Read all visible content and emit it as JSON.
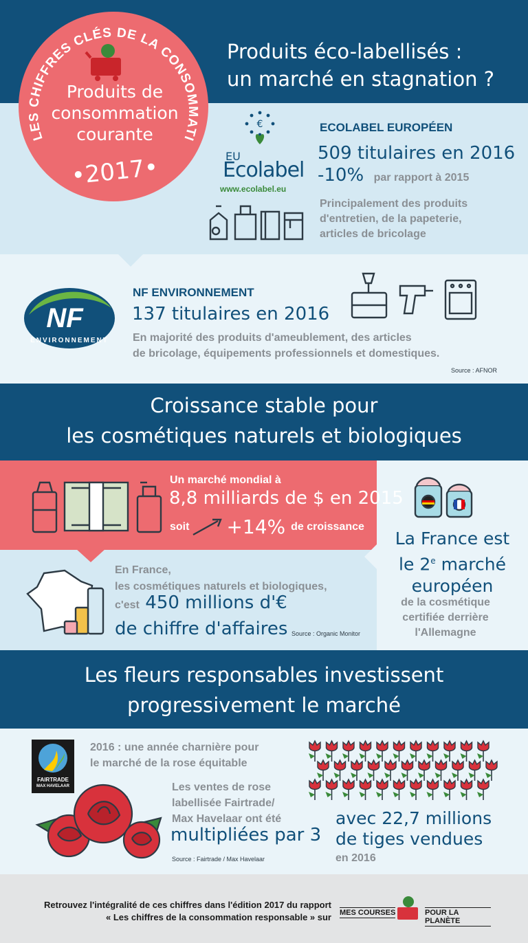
{
  "badge": {
    "ring_text": "LES CHIFFRES CLÉS DE LA CONSOMMATION RESPONSABLE",
    "line1": "Produits de",
    "line2": "consommation",
    "line3": "courante",
    "year": "•2017•"
  },
  "section1": {
    "title_line1": "Produits éco-labellisés :",
    "title_line2": "un marché en stagnation ?",
    "ecolabel": {
      "logo_eu": "EU",
      "logo_name": "Ecolabel",
      "logo_url": "www.ecolabel.eu",
      "heading": "ECOLABEL EUROPÉEN",
      "stat": "509 titulaires en 2016",
      "change": "-10%",
      "change_note": "par rapport à 2015",
      "desc_line1": "Principalement des produits",
      "desc_line2": "d'entretien, de la papeterie,",
      "desc_line3": "articles de bricolage"
    },
    "nf": {
      "logo_text": "NF",
      "logo_sub": "ENVIRONNEMENT",
      "heading": "NF ENVIRONNEMENT",
      "stat": "137 titulaires en 2016",
      "desc_line1": "En majorité des produits d'ameublement, des articles",
      "desc_line2": "de bricolage, équipements professionnels et domestiques.",
      "source": "Source : AFNOR"
    }
  },
  "section2": {
    "title_line1": "Croissance stable pour",
    "title_line2": "les cosmétiques naturels et biologiques",
    "world": {
      "intro": "Un marché mondial à",
      "stat": "8,8 milliards de $ en 2015",
      "soit": "soit",
      "growth": "+14%",
      "growth_note": "de croissance"
    },
    "france": {
      "line1": "En France,",
      "line2": "les cosmétiques naturels et biologiques,",
      "cest": "c'est",
      "stat1": "450 millions d'€",
      "stat2": "de chiffre d'affaires",
      "source": "Source : Organic Monitor"
    },
    "rank": {
      "line1": "La France est",
      "line2_pre": "le 2",
      "line2_sup": "e",
      "line2_post": " marché",
      "line3": "européen",
      "desc1": "de la cosmétique",
      "desc2": "certifiée derrière",
      "desc3": "l'Allemagne"
    }
  },
  "section3": {
    "title_line1": "Les fleurs responsables investissent",
    "title_line2": "progressivement le marché",
    "fairtrade_logo_line1": "FAIRTRADE",
    "fairtrade_logo_line2": "MAX HAVELAAR",
    "intro1": "2016 : une année charnière pour",
    "intro2": "le marché de la rose équitable",
    "sales1": "Les ventes de rose",
    "sales2": "labellisée Fairtrade/",
    "sales3": "Max Havelaar ont été",
    "sales_stat": "multipliées par 3",
    "stems1": "avec 22,7 millions",
    "stems2": "de tiges vendues",
    "stems_year": "en 2016",
    "source": "Source : Fairtrade / Max Havelaar"
  },
  "footer": {
    "line1": "Retrouvez l'intégralité de ces chiffres dans l'édition 2017 du rapport",
    "line2": "« Les chiffres de la consommation responsable » sur",
    "logo_left": "MES COURSES",
    "logo_right": "POUR LA PLANÈTE"
  },
  "colors": {
    "navy": "#11507a",
    "pink": "#ed6b70",
    "light_blue": "#d5e9f3",
    "pale_blue": "#eaf4f9",
    "green": "#3a8a3a"
  }
}
